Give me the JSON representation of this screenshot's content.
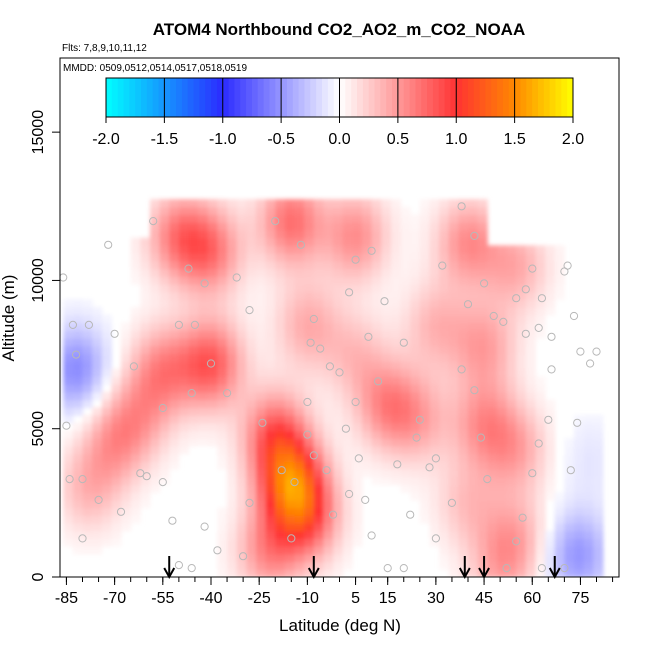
{
  "chart_data": {
    "type": "heatmap",
    "title": "ATOM4 Northbound CO2_AO2_m_CO2_NOAA",
    "subtitle_flights": "Flts: 7,8,9,10,11,12",
    "subtitle_dates": "MMDD: 0509,0512,0514,0517,0518,0519",
    "xlabel": "Latitude (deg N)",
    "ylabel": "Altitude (m)",
    "xlim": [
      -87,
      87
    ],
    "ylim": [
      0,
      17500
    ],
    "xticks": [
      -85,
      -70,
      -55,
      -40,
      -25,
      -10,
      5,
      15,
      30,
      45,
      60,
      75
    ],
    "yticks": [
      0,
      5000,
      10000,
      15000
    ],
    "colorbar": {
      "ticks": [
        -2.0,
        -1.5,
        -1.0,
        -0.5,
        0.0,
        0.5,
        1.0,
        1.5,
        2.0
      ],
      "tick_labels": [
        "-2.0",
        "-1.5",
        "-1.0",
        "-0.5",
        "0.0",
        "0.5",
        "1.0",
        "1.5",
        "2.0"
      ],
      "range": [
        -2.0,
        2.0
      ]
    },
    "colors": {
      "min": "#00ffff",
      "neg_mid": "#2b2bff",
      "zero": "#ffffff",
      "pos_mid": "#ff3333",
      "pos_high": "#ff8800",
      "max": "#ffff00"
    },
    "field_blobs": [
      {
        "lat": -15,
        "alt": 3200,
        "value": 1.15
      },
      {
        "lat": -20,
        "alt": 4800,
        "value": 0.75
      },
      {
        "lat": -10,
        "alt": 2000,
        "value": 0.7
      },
      {
        "lat": -22,
        "alt": 900,
        "value": 0.55
      },
      {
        "lat": -40,
        "alt": 7200,
        "value": 0.8
      },
      {
        "lat": -55,
        "alt": 7000,
        "value": 0.55
      },
      {
        "lat": -70,
        "alt": 4600,
        "value": 0.45
      },
      {
        "lat": -78,
        "alt": 3000,
        "value": 0.35
      },
      {
        "lat": -62,
        "alt": 5500,
        "value": 0.35
      },
      {
        "lat": -40,
        "alt": 11000,
        "value": 0.6
      },
      {
        "lat": -50,
        "alt": 11500,
        "value": 0.6
      },
      {
        "lat": -15,
        "alt": 12000,
        "value": 0.7
      },
      {
        "lat": 5,
        "alt": 11500,
        "value": 0.55
      },
      {
        "lat": 40,
        "alt": 11300,
        "value": 0.55
      },
      {
        "lat": 55,
        "alt": 10500,
        "value": 0.4
      },
      {
        "lat": -10,
        "alt": 8500,
        "value": 0.4
      },
      {
        "lat": 30,
        "alt": 8500,
        "value": 0.35
      },
      {
        "lat": 45,
        "alt": 7800,
        "value": 0.45
      },
      {
        "lat": 15,
        "alt": 5800,
        "value": 0.55
      },
      {
        "lat": 25,
        "alt": 5300,
        "value": 0.35
      },
      {
        "lat": 45,
        "alt": 5200,
        "value": 0.5
      },
      {
        "lat": 55,
        "alt": 4300,
        "value": 0.4
      },
      {
        "lat": 40,
        "alt": 2500,
        "value": 0.3
      },
      {
        "lat": 55,
        "alt": 1400,
        "value": 0.35
      },
      {
        "lat": 50,
        "alt": 300,
        "value": 0.35
      },
      {
        "lat": 5,
        "alt": 7500,
        "value": 0.3
      },
      {
        "lat": -82,
        "alt": 7000,
        "value": -0.55
      },
      {
        "lat": 74,
        "alt": 750,
        "value": -0.5
      },
      {
        "lat": 78,
        "alt": 4000,
        "value": -0.12
      }
    ],
    "points": [
      [
        -86,
        10100
      ],
      [
        -85,
        5100
      ],
      [
        -84,
        3300
      ],
      [
        -80,
        3300
      ],
      [
        -82,
        7500
      ],
      [
        -83,
        8500
      ],
      [
        -80,
        1300
      ],
      [
        -72,
        11200
      ],
      [
        -58,
        12000
      ],
      [
        -47,
        10400
      ],
      [
        -42,
        9900
      ],
      [
        -32,
        10100
      ],
      [
        -20,
        12000
      ],
      [
        -12,
        11200
      ],
      [
        -28,
        9000
      ],
      [
        -50,
        8500
      ],
      [
        -45,
        8500
      ],
      [
        -40,
        7200
      ],
      [
        -35,
        6200
      ],
      [
        -46,
        6200
      ],
      [
        -55,
        5700
      ],
      [
        -62,
        3500
      ],
      [
        -55,
        3200
      ],
      [
        -52,
        1900
      ],
      [
        -42,
        1700
      ],
      [
        -38,
        900
      ],
      [
        -30,
        700
      ],
      [
        -24,
        5200
      ],
      [
        -18,
        3600
      ],
      [
        -14,
        3200
      ],
      [
        -10,
        4800
      ],
      [
        -8,
        4100
      ],
      [
        -6,
        7700
      ],
      [
        -8,
        8700
      ],
      [
        -9,
        7900
      ],
      [
        -10,
        5900
      ],
      [
        -3,
        7100
      ],
      [
        0,
        6900
      ],
      [
        3,
        9600
      ],
      [
        5,
        10700
      ],
      [
        10,
        11000
      ],
      [
        9,
        8100
      ],
      [
        12,
        6600
      ],
      [
        5,
        5900
      ],
      [
        2,
        5000
      ],
      [
        6,
        4000
      ],
      [
        3,
        2800
      ],
      [
        10,
        1400
      ],
      [
        15,
        300
      ],
      [
        20,
        300
      ],
      [
        22,
        2100
      ],
      [
        18,
        3800
      ],
      [
        25,
        5300
      ],
      [
        32,
        10500
      ],
      [
        38,
        12500
      ],
      [
        42,
        11500
      ],
      [
        45,
        9900
      ],
      [
        48,
        8800
      ],
      [
        51,
        8600
      ],
      [
        55,
        9400
      ],
      [
        58,
        9700
      ],
      [
        60,
        10400
      ],
      [
        63,
        9400
      ],
      [
        66,
        8100
      ],
      [
        70,
        10300
      ],
      [
        71,
        10500
      ],
      [
        73,
        8800
      ],
      [
        75,
        7600
      ],
      [
        80,
        7600
      ],
      [
        78,
        7200
      ],
      [
        74,
        5200
      ],
      [
        65,
        5300
      ],
      [
        62,
        4500
      ],
      [
        60,
        3500
      ],
      [
        57,
        2000
      ],
      [
        55,
        1200
      ],
      [
        52,
        300
      ],
      [
        63,
        300
      ],
      [
        72,
        3600
      ],
      [
        70,
        300
      ],
      [
        46,
        3300
      ],
      [
        44,
        4700
      ],
      [
        42,
        6300
      ],
      [
        38,
        7000
      ],
      [
        28,
        3700
      ],
      [
        24,
        4700
      ],
      [
        35,
        2500
      ],
      [
        -28,
        2500
      ],
      [
        -60,
        3400
      ],
      [
        -68,
        2200
      ],
      [
        -75,
        2600
      ],
      [
        -78,
        8500
      ],
      [
        -64,
        7100
      ],
      [
        -70,
        8200
      ],
      [
        -50,
        400
      ],
      [
        -46,
        300
      ],
      [
        -15,
        1300
      ],
      [
        -2,
        2100
      ],
      [
        8,
        2600
      ],
      [
        30,
        4000
      ],
      [
        40,
        9200
      ],
      [
        66,
        7000
      ],
      [
        62,
        8400
      ],
      [
        58,
        8200
      ],
      [
        20,
        7900
      ],
      [
        14,
        9300
      ],
      [
        -4,
        3600
      ],
      [
        30,
        1300
      ]
    ],
    "arrow_latitudes": [
      -53,
      -8,
      39,
      45,
      67
    ]
  }
}
